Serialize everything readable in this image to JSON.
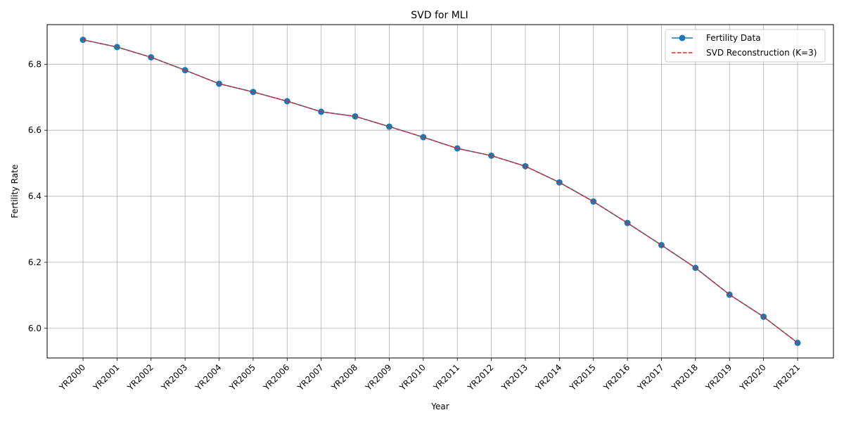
{
  "chart_data": {
    "type": "line",
    "title": "SVD for MLI",
    "xlabel": "Year",
    "ylabel": "Fertility Rate",
    "categories": [
      "YR2000",
      "YR2001",
      "YR2002",
      "YR2003",
      "YR2004",
      "YR2005",
      "YR2006",
      "YR2007",
      "YR2008",
      "YR2009",
      "YR2010",
      "YR2011",
      "YR2012",
      "YR2013",
      "YR2014",
      "YR2015",
      "YR2016",
      "YR2017",
      "YR2018",
      "YR2019",
      "YR2020",
      "YR2021"
    ],
    "ylim": [
      5.91,
      6.92
    ],
    "yticks": [
      "6.0",
      "6.2",
      "6.4",
      "6.6",
      "6.8"
    ],
    "grid": true,
    "legend_position": "top-right",
    "series": [
      {
        "name": "Fertility Data",
        "color": "#1f77b4",
        "style": "solid-with-circle-markers",
        "values": [
          6.874,
          6.852,
          6.821,
          6.782,
          6.741,
          6.716,
          6.688,
          6.656,
          6.642,
          6.611,
          6.579,
          6.545,
          6.523,
          6.491,
          6.442,
          6.384,
          6.319,
          6.252,
          6.183,
          6.102,
          6.035,
          5.956
        ]
      },
      {
        "name": "SVD Reconstruction (K=3)",
        "color": "#d62728",
        "style": "dashed",
        "values": [
          6.874,
          6.852,
          6.821,
          6.782,
          6.741,
          6.716,
          6.688,
          6.656,
          6.642,
          6.611,
          6.579,
          6.545,
          6.523,
          6.491,
          6.442,
          6.384,
          6.319,
          6.252,
          6.183,
          6.102,
          6.035,
          5.956
        ]
      }
    ]
  }
}
